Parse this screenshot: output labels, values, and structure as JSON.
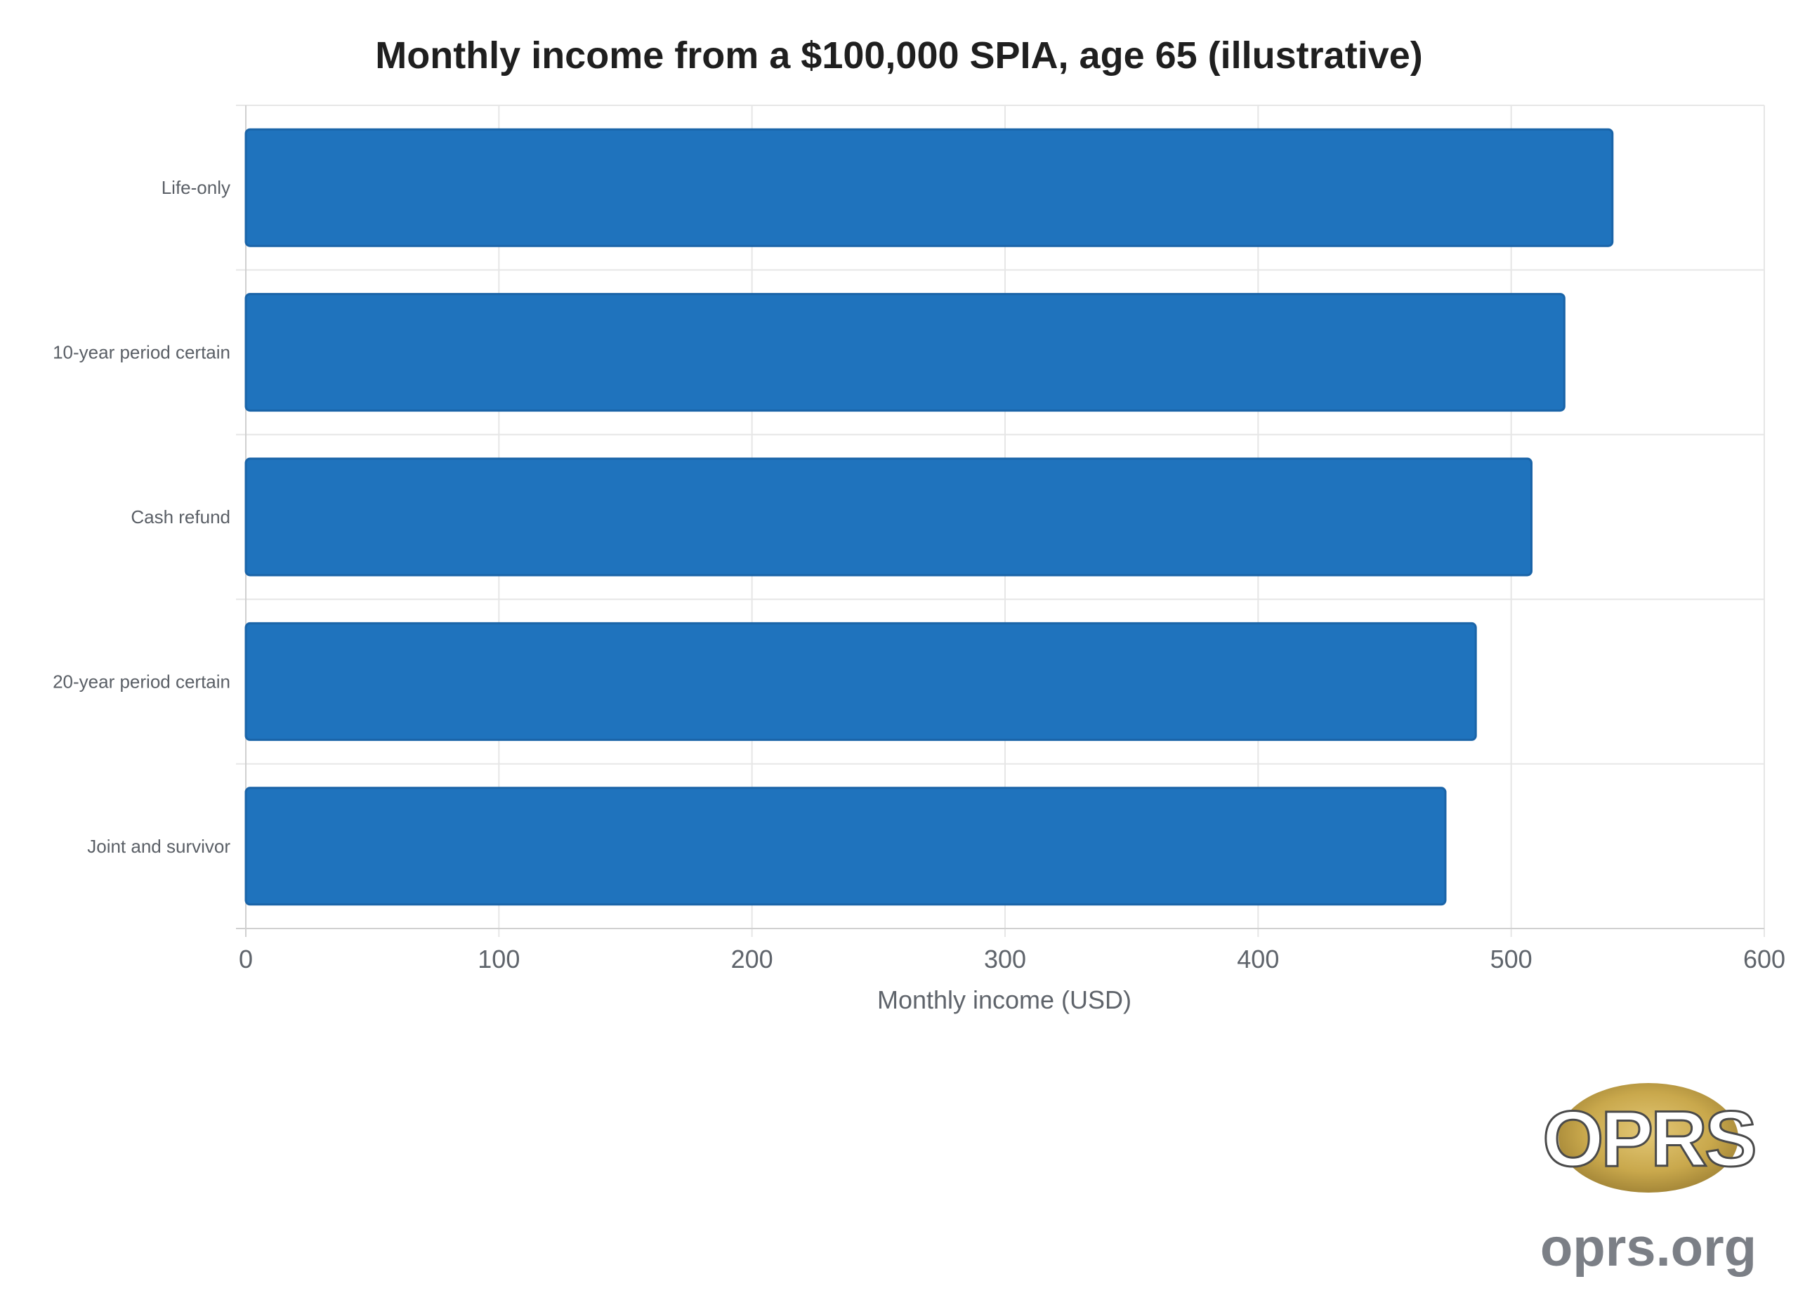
{
  "chart_data": {
    "type": "bar",
    "orientation": "horizontal",
    "title": "Monthly income from a $100,000 SPIA, age 65 (illustrative)",
    "xlabel": "Monthly income (USD)",
    "ylabel": "",
    "categories": [
      "Life-only",
      "10-year period certain",
      "Cash refund",
      "20-year period certain",
      "Joint and survivor"
    ],
    "values": [
      540,
      521,
      508,
      486,
      474
    ],
    "xlim": [
      0,
      600
    ],
    "xticks": [
      "0",
      "100",
      "200",
      "300",
      "400",
      "500",
      "600"
    ],
    "grid": true,
    "legend": "none",
    "bar_color": "#1f73bd",
    "bar_edge_color": "#1a64a8"
  },
  "branding": {
    "logo_letters": "OPRS",
    "site": "oprs.org"
  },
  "colors": {
    "logo_gold": "#c9a84c",
    "logo_text_gray": "#7b7f86"
  }
}
